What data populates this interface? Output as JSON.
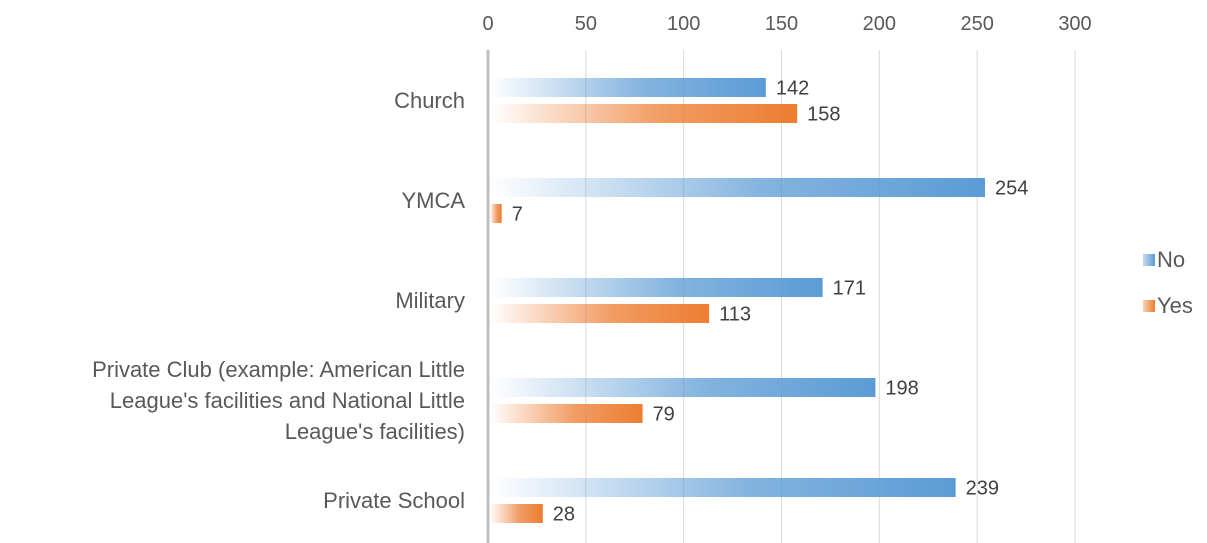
{
  "chart_data": {
    "type": "bar",
    "orientation": "horizontal",
    "categories": [
      "Church",
      "YMCA",
      "Military",
      "Private Club (example: American Little League's facilities and National Little League's facilities)",
      "Private School"
    ],
    "category_label_lines": [
      [
        "Church"
      ],
      [
        "YMCA"
      ],
      [
        "Military"
      ],
      [
        "Private Club (example: American Little",
        "League's facilities and National Little",
        "League's facilities)"
      ],
      [
        "Private School"
      ]
    ],
    "series": [
      {
        "name": "No",
        "values": [
          142,
          254,
          171,
          198,
          239
        ],
        "color": "#5B9BD5"
      },
      {
        "name": "Yes",
        "values": [
          158,
          7,
          113,
          79,
          28
        ],
        "color": "#ED7D31"
      }
    ],
    "xlim": [
      0,
      300
    ],
    "xticks": [
      0,
      50,
      100,
      150,
      200,
      250,
      300
    ],
    "x_axis_position": "top",
    "grid": true,
    "data_labels": true,
    "legend_position": "right",
    "fill": "gradient"
  }
}
